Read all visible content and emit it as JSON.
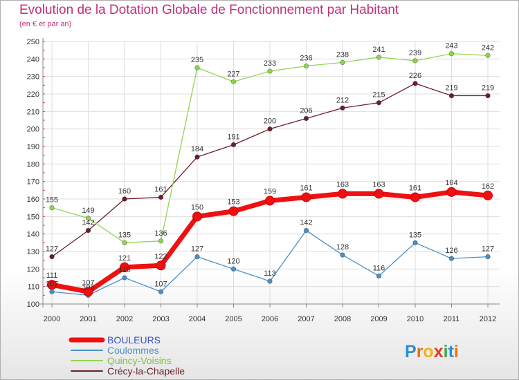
{
  "chart_data": {
    "type": "line",
    "title": "Evolution de la Dotation Globale de Fonctionnement par Habitant",
    "subtitle": "(en € et par an)",
    "xlabel": "",
    "ylabel": "",
    "categories": [
      "2000",
      "2001",
      "2002",
      "2003",
      "2004",
      "2005",
      "2006",
      "2007",
      "2008",
      "2009",
      "2010",
      "2011",
      "2012"
    ],
    "ylim": [
      100,
      250
    ],
    "yticks": [
      100,
      110,
      120,
      130,
      140,
      150,
      160,
      170,
      180,
      190,
      200,
      210,
      220,
      230,
      240,
      250
    ],
    "grid": true,
    "series": [
      {
        "name": "Crécy-la-Chapelle",
        "color": "#6b1f2a",
        "values": [
          127,
          142,
          160,
          161,
          184,
          191,
          200,
          206,
          212,
          215,
          226,
          219,
          219
        ]
      },
      {
        "name": "Quincy-Voisins",
        "color": "#8fd650",
        "values": [
          155,
          149,
          135,
          136,
          235,
          227,
          233,
          236,
          238,
          241,
          239,
          243,
          242
        ]
      },
      {
        "name": "Coulommes",
        "color": "#4a90c8",
        "values": [
          107,
          105,
          115,
          107,
          127,
          120,
          113,
          142,
          128,
          116,
          135,
          126,
          127
        ]
      },
      {
        "name": "BOULEURS",
        "color": "#ee1111",
        "values": [
          111,
          107,
          121,
          122,
          150,
          153,
          159,
          161,
          163,
          163,
          161,
          164,
          162
        ]
      }
    ]
  },
  "legend": [
    {
      "name": "BOULEURS",
      "color": "#ee1111",
      "text_color": "#3a52c4"
    },
    {
      "name": "Coulommes",
      "color": "#4a90c8",
      "text_color": "#4a90c8"
    },
    {
      "name": "Quincy-Voisins",
      "color": "#8fd650",
      "text_color": "#7fc040"
    },
    {
      "name": "Crécy-la-Chapelle",
      "color": "#6b1f2a",
      "text_color": "#6b1f2a"
    }
  ],
  "logo": {
    "letters": [
      "P",
      "r",
      "o",
      "x",
      "i",
      "t",
      "i"
    ],
    "colors": [
      "#2e8fd0",
      "#e8711c",
      "#f0b21c",
      "#e23a2a",
      "#3aa84a",
      "#2e8fd0",
      "#e8711c"
    ]
  }
}
